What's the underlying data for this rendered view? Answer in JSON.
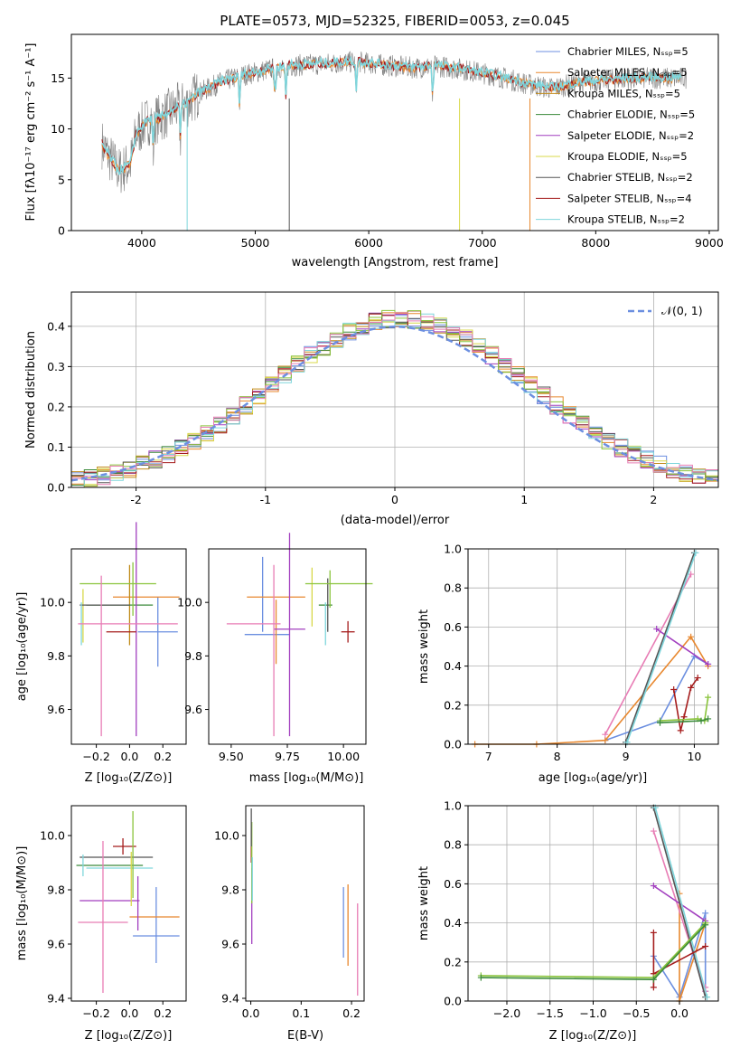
{
  "palette": [
    "#6c8fe0",
    "#e8882f",
    "#c18a18",
    "#3a8a3a",
    "#a23fbf",
    "#d8d84a",
    "#555555",
    "#a51c1c",
    "#7fd6dc"
  ],
  "extra_colors": [
    "#8ac43c",
    "#e87db5"
  ],
  "chart_data": [
    {
      "id": "spectrum",
      "type": "line",
      "title": "PLATE=0573, MJD=52325, FIBERID=0053, z=0.045",
      "xlabel": "wavelength [Angstrom, rest frame]",
      "ylabel": "Flux [fλ10⁻¹⁷ erg cm⁻² s⁻¹ A⁻¹]",
      "xlim": [
        3380,
        9080
      ],
      "ylim": [
        0,
        19.3
      ],
      "xticks": [
        4000,
        5000,
        6000,
        7000,
        8000,
        9000
      ],
      "yticks": [
        0,
        5,
        10,
        15
      ],
      "continuum": [
        [
          3650,
          8.5
        ],
        [
          3700,
          7.5
        ],
        [
          3800,
          5.8
        ],
        [
          3900,
          6.5
        ],
        [
          3950,
          9.5
        ],
        [
          4050,
          10.8
        ],
        [
          4150,
          11.0
        ],
        [
          4300,
          12.0
        ],
        [
          4400,
          12.5
        ],
        [
          4500,
          13.5
        ],
        [
          4700,
          14.6
        ],
        [
          4900,
          15.3
        ],
        [
          5100,
          15.8
        ],
        [
          5300,
          16.2
        ],
        [
          5600,
          16.4
        ],
        [
          5900,
          16.6
        ],
        [
          6100,
          16.3
        ],
        [
          6400,
          16.0
        ],
        [
          6600,
          16.2
        ],
        [
          6800,
          15.9
        ],
        [
          7000,
          15.5
        ],
        [
          7200,
          15.0
        ],
        [
          7400,
          14.4
        ],
        [
          7600,
          14.0
        ],
        [
          7900,
          14.6
        ],
        [
          8200,
          14.9
        ],
        [
          8500,
          15.0
        ],
        [
          8800,
          15.0
        ]
      ],
      "absorption_lines": [
        4102,
        4340,
        4861,
        5175,
        5270,
        5890,
        6563
      ],
      "legend": {
        "position": "upper right",
        "entries": [
          "Chabrier MILES, Nₛₛₚ=5",
          "Salpeter MILES, Nₛₛₚ=5",
          "Kroupa MILES, Nₛₛₚ=5",
          "Chabrier ELODIE, Nₛₛₚ=5",
          "Salpeter ELODIE, Nₛₛₚ=2",
          "Kroupa ELODIE, Nₛₛₚ=5",
          "Chabrier STELIB, Nₛₛₚ=2",
          "Salpeter STELIB, Nₛₛₚ=4",
          "Kroupa STELIB, Nₛₛₚ=2"
        ]
      }
    },
    {
      "id": "residuals",
      "type": "area",
      "xlabel": "(data-model)/error",
      "ylabel": "Normed distribution",
      "xlim": [
        -2.5,
        2.5
      ],
      "ylim": [
        0,
        0.485
      ],
      "xticks": [
        -2,
        -1,
        0,
        1,
        2
      ],
      "yticks": [
        0,
        0.1,
        0.2,
        0.3,
        0.4
      ],
      "grid": true,
      "bins": 50,
      "reference": "N(0,1)",
      "legend": {
        "position": "upper right",
        "entries": [
          "𝒩(0, 1)"
        ]
      }
    },
    {
      "id": "age_vs_Z",
      "type": "scatter",
      "xlabel": "Z [log₁₀(Z/Z⊙)]",
      "ylabel": "age  [log₁₀(age/yr)]",
      "xlim": [
        -0.35,
        0.34
      ],
      "ylim": [
        9.47,
        10.2
      ],
      "xticks": [
        -0.2,
        0.0,
        0.2
      ],
      "xticklabels": [
        "−0.2",
        "0.0",
        "0.2"
      ],
      "yticks": [
        9.6,
        9.8,
        10.0
      ],
      "points": [
        {
          "x": 0.17,
          "xerr": 0.12,
          "y": 9.89,
          "yerr": 0.13,
          "c": 0
        },
        {
          "x": 0.1,
          "xerr": 0.2,
          "y": 10.02,
          "yerr": 0.0,
          "c": 1
        },
        {
          "x": 0.0,
          "xerr": 0.0,
          "y": 9.99,
          "yerr": 0.15,
          "c": 2
        },
        {
          "x": -0.06,
          "xerr": 0.2,
          "y": 9.99,
          "yerr": 0.0,
          "c": 3
        },
        {
          "x": 0.04,
          "xerr": 0.0,
          "y": 9.9,
          "yerr": 0.4,
          "c": 4
        },
        {
          "x": -0.28,
          "xerr": 0.0,
          "y": 9.95,
          "yerr": 0.1,
          "c": 5
        },
        {
          "x": -0.15,
          "xerr": 0.15,
          "y": 9.99,
          "yerr": 0.0,
          "c": 6
        },
        {
          "x": -0.05,
          "xerr": 0.09,
          "y": 9.89,
          "yerr": 0.0,
          "c": 7
        },
        {
          "x": -0.29,
          "xerr": 0.0,
          "y": 9.92,
          "yerr": 0.08,
          "c": 8
        },
        {
          "x": -0.07,
          "xerr": 0.23,
          "y": 10.07,
          "yerr": 0.0,
          "c": 9
        },
        {
          "x": 0.02,
          "xerr": 0.0,
          "y": 10.05,
          "yerr": 0.1,
          "c": 9
        },
        {
          "x": -0.01,
          "xerr": 0.3,
          "y": 9.92,
          "yerr": 0.0,
          "c": 10
        },
        {
          "x": -0.17,
          "xerr": 0.0,
          "y": 9.8,
          "yerr": 0.3,
          "c": 10
        }
      ]
    },
    {
      "id": "age_vs_mass",
      "type": "scatter",
      "xlabel": "mass [log₁₀(M/M⊙)]",
      "xlim": [
        9.4,
        10.1
      ],
      "ylim": [
        9.47,
        10.2
      ],
      "xticks": [
        9.5,
        9.75,
        10.0
      ],
      "xticklabels": [
        "9.50",
        "9.75",
        "10.00"
      ],
      "yticks": [
        9.6,
        9.8,
        10.0
      ],
      "points": [
        {
          "x": 9.64,
          "xerr": 0.0,
          "y": 10.03,
          "yerr": 0.14,
          "c": 0
        },
        {
          "x": 9.66,
          "xerr": 0.1,
          "y": 9.88,
          "yerr": 0.0,
          "c": 0
        },
        {
          "x": 9.7,
          "xerr": 0.13,
          "y": 10.02,
          "yerr": 0.0,
          "c": 1
        },
        {
          "x": 9.7,
          "xerr": 0.0,
          "y": 9.89,
          "yerr": 0.12,
          "c": 1
        },
        {
          "x": 9.92,
          "xerr": 0.03,
          "y": 9.99,
          "yerr": 0.0,
          "c": 3
        },
        {
          "x": 9.93,
          "xerr": 0.0,
          "y": 9.99,
          "yerr": 0.1,
          "c": 6
        },
        {
          "x": 9.76,
          "xerr": 0.0,
          "y": 9.88,
          "yerr": 0.38,
          "c": 4
        },
        {
          "x": 9.76,
          "xerr": 0.07,
          "y": 9.9,
          "yerr": 0.0,
          "c": 4
        },
        {
          "x": 9.86,
          "xerr": 0.0,
          "y": 10.02,
          "yerr": 0.11,
          "c": 5
        },
        {
          "x": 10.02,
          "xerr": 0.03,
          "y": 9.89,
          "yerr": 0.04,
          "c": 7
        },
        {
          "x": 9.92,
          "xerr": 0.0,
          "y": 9.92,
          "yerr": 0.08,
          "c": 8
        },
        {
          "x": 9.98,
          "xerr": 0.15,
          "y": 10.07,
          "yerr": 0.0,
          "c": 9
        },
        {
          "x": 9.94,
          "xerr": 0.0,
          "y": 10.05,
          "yerr": 0.07,
          "c": 9
        },
        {
          "x": 9.6,
          "xerr": 0.12,
          "y": 9.92,
          "yerr": 0.0,
          "c": 10
        },
        {
          "x": 9.69,
          "xerr": 0.0,
          "y": 9.82,
          "yerr": 0.32,
          "c": 10
        }
      ]
    },
    {
      "id": "weight_vs_age",
      "type": "line",
      "xlabel": "age  [log₁₀(age/yr)]",
      "ylabel": "mass weight",
      "xlim": [
        6.7,
        10.35
      ],
      "ylim": [
        0,
        1
      ],
      "xticks": [
        7,
        8,
        9,
        10
      ],
      "yticks": [
        0,
        0.2,
        0.4,
        0.6,
        0.8,
        1.0
      ],
      "yticklabels": [
        "0.0",
        "0.2",
        "0.4",
        "0.6",
        "0.8",
        "1.0"
      ],
      "grid": true,
      "series": [
        {
          "c": 0,
          "x": [
            8.7,
            9.5,
            10.0,
            10.2
          ],
          "y": [
            0.02,
            0.12,
            0.45,
            0.41
          ]
        },
        {
          "c": 1,
          "x": [
            6.8,
            7.7,
            8.7,
            9.95,
            10.2
          ],
          "y": [
            0.0,
            0.0,
            0.02,
            0.55,
            0.4
          ]
        },
        {
          "c": 10,
          "x": [
            8.7,
            9.95
          ],
          "y": [
            0.05,
            0.87
          ]
        },
        {
          "c": 4,
          "x": [
            9.45,
            10.2
          ],
          "y": [
            0.59,
            0.41
          ]
        },
        {
          "c": 6,
          "x": [
            9.0,
            10.0
          ],
          "y": [
            0.01,
            0.98
          ]
        },
        {
          "c": 8,
          "x": [
            9.02,
            10.02
          ],
          "y": [
            0.01,
            0.98
          ]
        },
        {
          "c": 7,
          "x": [
            9.7,
            9.8,
            9.85,
            9.95,
            10.05
          ],
          "y": [
            0.28,
            0.07,
            0.14,
            0.29,
            0.34
          ]
        },
        {
          "c": 9,
          "x": [
            9.5,
            10.05,
            10.15,
            10.2
          ],
          "y": [
            0.12,
            0.13,
            0.12,
            0.24
          ]
        },
        {
          "c": 3,
          "x": [
            9.5,
            10.1,
            10.2
          ],
          "y": [
            0.11,
            0.12,
            0.13
          ]
        }
      ]
    },
    {
      "id": "mass_vs_Z",
      "type": "scatter",
      "xlabel": "Z [log₁₀(Z/Z⊙)]",
      "ylabel": "mass [log₁₀(M/M⊙)]",
      "xlim": [
        -0.35,
        0.34
      ],
      "ylim": [
        9.39,
        10.11
      ],
      "xticks": [
        -0.2,
        0.0,
        0.2
      ],
      "xticklabels": [
        "−0.2",
        "0.0",
        "0.2"
      ],
      "yticks": [
        9.4,
        9.6,
        9.8,
        10.0
      ],
      "points": [
        {
          "x": 0.16,
          "xerr": 0.14,
          "y": 9.63,
          "yerr": 0.0,
          "c": 0
        },
        {
          "x": 0.16,
          "xerr": 0.0,
          "y": 9.67,
          "yerr": 0.14,
          "c": 0
        },
        {
          "x": 0.15,
          "xerr": 0.15,
          "y": 9.7,
          "yerr": 0.0,
          "c": 1
        },
        {
          "x": 0.05,
          "xerr": 0.0,
          "y": 9.75,
          "yerr": 0.1,
          "c": 4
        },
        {
          "x": -0.12,
          "xerr": 0.18,
          "y": 9.76,
          "yerr": 0.0,
          "c": 4
        },
        {
          "x": -0.08,
          "xerr": 0.22,
          "y": 9.92,
          "yerr": 0.0,
          "c": 6
        },
        {
          "x": -0.12,
          "xerr": 0.2,
          "y": 9.89,
          "yerr": 0.0,
          "c": 3
        },
        {
          "x": -0.06,
          "xerr": 0.2,
          "y": 9.88,
          "yerr": 0.0,
          "c": 8
        },
        {
          "x": -0.03,
          "xerr": 0.07,
          "y": 9.96,
          "yerr": 0.0,
          "c": 7
        },
        {
          "x": -0.04,
          "xerr": 0.0,
          "y": 9.96,
          "yerr": 0.03,
          "c": 7
        },
        {
          "x": -0.28,
          "xerr": 0.0,
          "y": 9.89,
          "yerr": 0.04,
          "c": 8
        },
        {
          "x": 0.02,
          "xerr": 0.0,
          "y": 9.93,
          "yerr": 0.16,
          "c": 9
        },
        {
          "x": 0.01,
          "xerr": 0.0,
          "y": 9.84,
          "yerr": 0.1,
          "c": 5
        },
        {
          "x": -0.16,
          "xerr": 0.15,
          "y": 9.68,
          "yerr": 0.0,
          "c": 10
        },
        {
          "x": -0.16,
          "xerr": 0.0,
          "y": 9.7,
          "yerr": 0.28,
          "c": 10
        }
      ]
    },
    {
      "id": "mass_vs_EBV",
      "type": "scatter",
      "xlabel": "E(B-V)",
      "xlim": [
        -0.01,
        0.225
      ],
      "ylim": [
        9.39,
        10.11
      ],
      "xticks": [
        0.0,
        0.1,
        0.2
      ],
      "xticklabels": [
        "0.0",
        "0.1",
        "0.2"
      ],
      "yticks": [
        9.4,
        9.6,
        9.8,
        10.0
      ],
      "points": [
        {
          "x": 0.184,
          "xerr": 0.0,
          "y": 9.68,
          "yerr": 0.13,
          "c": 0
        },
        {
          "x": 0.193,
          "xerr": 0.0,
          "y": 9.67,
          "yerr": 0.15,
          "c": 1
        },
        {
          "x": 0.212,
          "xerr": 0.0,
          "y": 9.58,
          "yerr": 0.17,
          "c": 10
        },
        {
          "x": 0.002,
          "xerr": 0.0,
          "y": 9.74,
          "yerr": 0.14,
          "c": 4
        },
        {
          "x": 0.001,
          "xerr": 0.0,
          "y": 9.96,
          "yerr": 0.06,
          "c": 7
        },
        {
          "x": 0.002,
          "xerr": 0.0,
          "y": 9.9,
          "yerr": 0.15,
          "c": 9
        },
        {
          "x": 0.001,
          "xerr": 0.0,
          "y": 10.03,
          "yerr": 0.07,
          "c": 6
        },
        {
          "x": 0.003,
          "xerr": 0.0,
          "y": 9.84,
          "yerr": 0.08,
          "c": 8
        }
      ]
    },
    {
      "id": "weight_vs_Z",
      "type": "line",
      "xlabel": "Z [log₁₀(Z/Z⊙)]",
      "ylabel": "mass weight",
      "xlim": [
        -2.45,
        0.45
      ],
      "ylim": [
        0,
        1
      ],
      "xticks": [
        -2.0,
        -1.5,
        -1.0,
        -0.5,
        0.0
      ],
      "xticklabels": [
        "−2.0",
        "−1.5",
        "−1.0",
        "−0.5",
        "0.0"
      ],
      "yticks": [
        0,
        0.2,
        0.4,
        0.6,
        0.8,
        1.0
      ],
      "yticklabels": [
        "0.0",
        "0.2",
        "0.4",
        "0.6",
        "0.8",
        "1.0"
      ],
      "grid": true,
      "series": [
        {
          "c": 0,
          "x": [
            -0.3,
            0.0,
            0.3,
            0.3
          ],
          "y": [
            0.23,
            0.02,
            0.45,
            0.05
          ]
        },
        {
          "c": 1,
          "x": [
            0.0,
            0.0,
            0.3
          ],
          "y": [
            0.55,
            0.0,
            0.4
          ]
        },
        {
          "c": 10,
          "x": [
            -0.3,
            0.3,
            0.3
          ],
          "y": [
            0.87,
            0.05,
            0.07
          ]
        },
        {
          "c": 4,
          "x": [
            -0.3,
            0.3
          ],
          "y": [
            0.59,
            0.41
          ]
        },
        {
          "c": 6,
          "x": [
            -0.3,
            0.3
          ],
          "y": [
            0.99,
            0.02
          ]
        },
        {
          "c": 8,
          "x": [
            -0.28,
            0.32
          ],
          "y": [
            0.99,
            0.02
          ]
        },
        {
          "c": 7,
          "x": [
            -0.3,
            -0.3,
            -0.3,
            0.3
          ],
          "y": [
            0.35,
            0.07,
            0.14,
            0.28
          ]
        },
        {
          "c": 9,
          "x": [
            -2.3,
            -0.3,
            0.3
          ],
          "y": [
            0.13,
            0.12,
            0.4
          ]
        },
        {
          "c": 3,
          "x": [
            -2.3,
            -0.3,
            0.3
          ],
          "y": [
            0.12,
            0.11,
            0.39
          ]
        }
      ]
    }
  ]
}
